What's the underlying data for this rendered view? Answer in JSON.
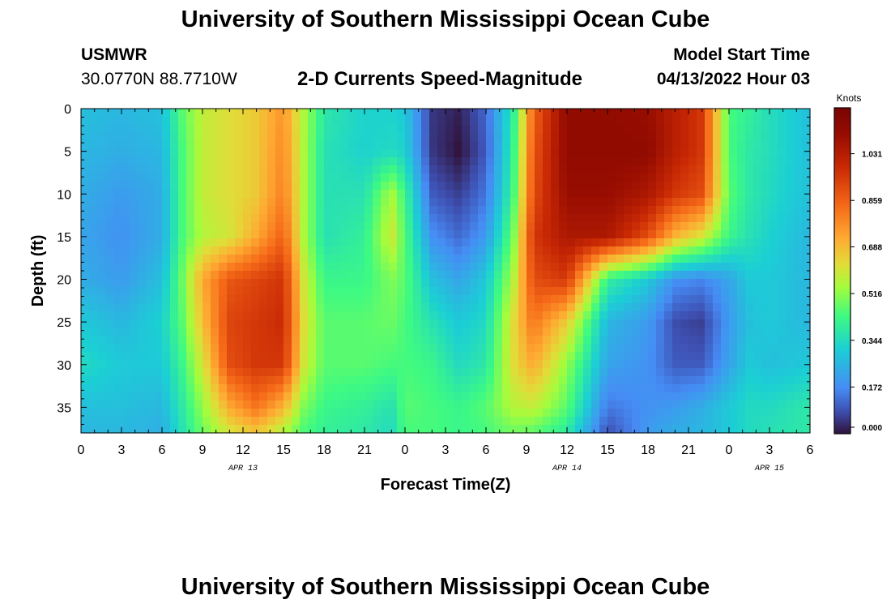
{
  "header": {
    "title": "University of Southern Mississippi Ocean Cube",
    "station": "USMWR",
    "coordinates": "30.0770N  88.7710W",
    "subtitle": "2-D Currents Speed-Magnitude",
    "model_start_label": "Model Start Time",
    "model_start_value": "04/13/2022 Hour 03"
  },
  "footer": {
    "title": "University of Southern Mississippi Ocean Cube"
  },
  "chart_data": {
    "type": "heatmap",
    "title": "2-D Currents Speed-Magnitude",
    "xlabel": "Forecast Time(Z)",
    "ylabel": "Depth (ft)",
    "x_tick_labels": [
      "0",
      "3",
      "6",
      "9",
      "12",
      "15",
      "18",
      "21",
      "0",
      "3",
      "6",
      "9",
      "12",
      "15",
      "18",
      "21",
      "0",
      "3",
      "6"
    ],
    "x_date_labels": [
      {
        "label": "APR 13",
        "hour_index": 12
      },
      {
        "label": "APR 14",
        "hour_index": 36
      },
      {
        "label": "APR 15",
        "hour_index": 51
      }
    ],
    "x_range_hours": [
      0,
      54
    ],
    "y_ticks": [
      0,
      5,
      10,
      15,
      20,
      25,
      30,
      35
    ],
    "y_range": [
      0,
      38
    ],
    "y_reversed": true,
    "colorbar": {
      "label": "Knots",
      "min": 0.0,
      "max": 1.2,
      "tick_values": [
        1.031,
        0.859,
        0.688,
        0.516,
        0.344,
        0.172,
        0.0
      ],
      "tick_labels": [
        "1.031",
        "0.859",
        "0.688",
        "0.516",
        "0.344",
        "0.172",
        "0.000"
      ]
    },
    "value_field_knots": {
      "time_hours": [
        0,
        3,
        6,
        7.5,
        9,
        11,
        13,
        15,
        16.5,
        18,
        21,
        23,
        24,
        26,
        28,
        30,
        32,
        33.5,
        36,
        39,
        42,
        44,
        46,
        48,
        49.5,
        51,
        54
      ],
      "depth_ft": [
        0,
        5,
        10,
        15,
        20,
        25,
        30,
        35,
        38
      ],
      "values": [
        [
          0.28,
          0.26,
          0.28,
          0.46,
          0.58,
          0.62,
          0.66,
          0.76,
          0.55,
          0.38,
          0.32,
          0.32,
          0.3,
          0.05,
          0.02,
          0.12,
          0.38,
          0.85,
          1.12,
          1.12,
          1.1,
          1.02,
          0.95,
          0.44,
          0.4,
          0.35,
          0.28
        ],
        [
          0.26,
          0.24,
          0.26,
          0.44,
          0.58,
          0.62,
          0.66,
          0.78,
          0.55,
          0.36,
          0.32,
          0.34,
          0.32,
          0.05,
          0.0,
          0.1,
          0.4,
          0.88,
          1.12,
          1.12,
          1.12,
          1.02,
          0.95,
          0.44,
          0.38,
          0.35,
          0.28
        ],
        [
          0.24,
          0.2,
          0.24,
          0.44,
          0.58,
          0.62,
          0.66,
          0.8,
          0.55,
          0.36,
          0.36,
          0.55,
          0.42,
          0.1,
          0.06,
          0.14,
          0.42,
          0.9,
          1.1,
          1.1,
          1.05,
          0.95,
          0.9,
          0.46,
          0.38,
          0.34,
          0.28
        ],
        [
          0.22,
          0.18,
          0.24,
          0.44,
          0.56,
          0.6,
          0.72,
          0.86,
          0.55,
          0.36,
          0.4,
          0.6,
          0.45,
          0.18,
          0.12,
          0.2,
          0.48,
          0.95,
          1.05,
          1.05,
          0.9,
          0.7,
          0.6,
          0.42,
          0.36,
          0.32,
          0.26
        ],
        [
          0.24,
          0.2,
          0.28,
          0.48,
          0.72,
          0.88,
          0.92,
          0.96,
          0.6,
          0.42,
          0.42,
          0.5,
          0.46,
          0.28,
          0.22,
          0.3,
          0.55,
          0.9,
          0.95,
          0.4,
          0.3,
          0.18,
          0.16,
          0.22,
          0.3,
          0.3,
          0.26
        ],
        [
          0.3,
          0.26,
          0.32,
          0.46,
          0.68,
          0.92,
          0.95,
          0.98,
          0.62,
          0.46,
          0.46,
          0.48,
          0.44,
          0.36,
          0.3,
          0.34,
          0.62,
          0.82,
          0.65,
          0.26,
          0.2,
          0.08,
          0.06,
          0.2,
          0.28,
          0.3,
          0.26
        ],
        [
          0.34,
          0.3,
          0.3,
          0.42,
          0.6,
          0.9,
          0.95,
          0.95,
          0.6,
          0.46,
          0.46,
          0.44,
          0.44,
          0.42,
          0.34,
          0.38,
          0.62,
          0.72,
          0.52,
          0.22,
          0.18,
          0.1,
          0.1,
          0.22,
          0.3,
          0.28,
          0.3
        ],
        [
          0.28,
          0.28,
          0.26,
          0.38,
          0.52,
          0.72,
          0.82,
          0.7,
          0.5,
          0.42,
          0.4,
          0.36,
          0.46,
          0.44,
          0.42,
          0.46,
          0.56,
          0.58,
          0.46,
          0.14,
          0.18,
          0.2,
          0.24,
          0.3,
          0.34,
          0.34,
          0.38
        ],
        [
          0.26,
          0.26,
          0.24,
          0.36,
          0.48,
          0.6,
          0.66,
          0.55,
          0.44,
          0.4,
          0.38,
          0.34,
          0.44,
          0.44,
          0.42,
          0.44,
          0.48,
          0.46,
          0.38,
          0.08,
          0.2,
          0.24,
          0.26,
          0.3,
          0.34,
          0.36,
          0.38
        ]
      ]
    }
  }
}
